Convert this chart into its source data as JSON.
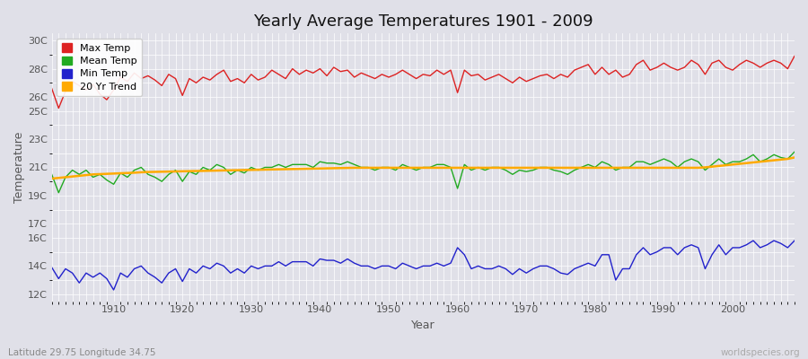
{
  "title": "Yearly Average Temperatures 1901 - 2009",
  "xlabel": "Year",
  "ylabel": "Temperature",
  "subtitle": "Latitude 29.75 Longitude 34.75",
  "watermark": "worldspecies.org",
  "bg_color": "#e0e0e8",
  "plot_bg_color": "#e0e0e8",
  "grid_color": "#ffffff",
  "years": [
    1901,
    1902,
    1903,
    1904,
    1905,
    1906,
    1907,
    1908,
    1909,
    1910,
    1911,
    1912,
    1913,
    1914,
    1915,
    1916,
    1917,
    1918,
    1919,
    1920,
    1921,
    1922,
    1923,
    1924,
    1925,
    1926,
    1927,
    1928,
    1929,
    1930,
    1931,
    1932,
    1933,
    1934,
    1935,
    1936,
    1937,
    1938,
    1939,
    1940,
    1941,
    1942,
    1943,
    1944,
    1945,
    1946,
    1947,
    1948,
    1949,
    1950,
    1951,
    1952,
    1953,
    1954,
    1955,
    1956,
    1957,
    1958,
    1959,
    1960,
    1961,
    1962,
    1963,
    1964,
    1965,
    1966,
    1967,
    1968,
    1969,
    1970,
    1971,
    1972,
    1973,
    1974,
    1975,
    1976,
    1977,
    1978,
    1979,
    1980,
    1981,
    1982,
    1983,
    1984,
    1985,
    1986,
    1987,
    1988,
    1989,
    1990,
    1991,
    1992,
    1993,
    1994,
    1995,
    1996,
    1997,
    1998,
    1999,
    2000,
    2001,
    2002,
    2003,
    2004,
    2005,
    2006,
    2007,
    2008,
    2009
  ],
  "max_temp": [
    26.6,
    25.2,
    26.4,
    27.1,
    26.8,
    26.5,
    26.9,
    26.2,
    25.8,
    26.5,
    27.4,
    27.1,
    27.7,
    27.3,
    27.5,
    27.2,
    26.8,
    27.6,
    27.3,
    26.1,
    27.3,
    27.0,
    27.4,
    27.2,
    27.6,
    27.9,
    27.1,
    27.3,
    27.0,
    27.6,
    27.2,
    27.4,
    27.9,
    27.6,
    27.3,
    28.0,
    27.6,
    27.9,
    27.7,
    28.0,
    27.5,
    28.1,
    27.8,
    27.9,
    27.4,
    27.7,
    27.5,
    27.3,
    27.6,
    27.4,
    27.6,
    27.9,
    27.6,
    27.3,
    27.6,
    27.5,
    27.9,
    27.6,
    27.9,
    26.3,
    27.9,
    27.5,
    27.6,
    27.2,
    27.4,
    27.6,
    27.3,
    27.0,
    27.4,
    27.1,
    27.3,
    27.5,
    27.6,
    27.3,
    27.6,
    27.4,
    27.9,
    28.1,
    28.3,
    27.6,
    28.1,
    27.6,
    27.9,
    27.4,
    27.6,
    28.3,
    28.6,
    27.9,
    28.1,
    28.4,
    28.1,
    27.9,
    28.1,
    28.6,
    28.3,
    27.6,
    28.4,
    28.6,
    28.1,
    27.9,
    28.3,
    28.6,
    28.4,
    28.1,
    28.4,
    28.6,
    28.4,
    28.0,
    28.9
  ],
  "mean_temp": [
    20.5,
    19.2,
    20.3,
    20.8,
    20.5,
    20.8,
    20.3,
    20.5,
    20.1,
    19.8,
    20.6,
    20.3,
    20.8,
    21.0,
    20.5,
    20.3,
    20.0,
    20.5,
    20.8,
    20.0,
    20.7,
    20.5,
    21.0,
    20.8,
    21.2,
    21.0,
    20.5,
    20.8,
    20.6,
    21.0,
    20.8,
    21.0,
    21.0,
    21.2,
    21.0,
    21.2,
    21.2,
    21.2,
    21.0,
    21.4,
    21.3,
    21.3,
    21.2,
    21.4,
    21.2,
    21.0,
    21.0,
    20.8,
    21.0,
    21.0,
    20.8,
    21.2,
    21.0,
    20.8,
    21.0,
    21.0,
    21.2,
    21.2,
    21.0,
    19.5,
    21.2,
    20.8,
    21.0,
    20.8,
    21.0,
    21.0,
    20.8,
    20.5,
    20.8,
    20.7,
    20.8,
    21.0,
    21.0,
    20.8,
    20.7,
    20.5,
    20.8,
    21.0,
    21.2,
    21.0,
    21.4,
    21.2,
    20.8,
    21.0,
    21.0,
    21.4,
    21.4,
    21.2,
    21.4,
    21.6,
    21.4,
    21.0,
    21.4,
    21.6,
    21.4,
    20.8,
    21.2,
    21.6,
    21.2,
    21.4,
    21.4,
    21.6,
    21.9,
    21.4,
    21.6,
    21.9,
    21.7,
    21.6,
    22.1
  ],
  "min_temp": [
    13.9,
    13.1,
    13.8,
    13.5,
    12.8,
    13.5,
    13.2,
    13.5,
    13.1,
    12.3,
    13.5,
    13.2,
    13.8,
    14.0,
    13.5,
    13.2,
    12.8,
    13.5,
    13.8,
    12.9,
    13.8,
    13.5,
    14.0,
    13.8,
    14.2,
    14.0,
    13.5,
    13.8,
    13.5,
    14.0,
    13.8,
    14.0,
    14.0,
    14.3,
    14.0,
    14.3,
    14.3,
    14.3,
    14.0,
    14.5,
    14.4,
    14.4,
    14.2,
    14.5,
    14.2,
    14.0,
    14.0,
    13.8,
    14.0,
    14.0,
    13.8,
    14.2,
    14.0,
    13.8,
    14.0,
    14.0,
    14.2,
    14.0,
    14.2,
    15.3,
    14.8,
    13.8,
    14.0,
    13.8,
    13.8,
    14.0,
    13.8,
    13.4,
    13.8,
    13.5,
    13.8,
    14.0,
    14.0,
    13.8,
    13.5,
    13.4,
    13.8,
    14.0,
    14.2,
    14.0,
    14.8,
    14.8,
    13.0,
    13.8,
    13.8,
    14.8,
    15.3,
    14.8,
    15.0,
    15.3,
    15.3,
    14.8,
    15.3,
    15.5,
    15.3,
    13.8,
    14.8,
    15.5,
    14.8,
    15.3,
    15.3,
    15.5,
    15.8,
    15.3,
    15.5,
    15.8,
    15.6,
    15.3,
    15.8
  ],
  "trend": [
    20.2,
    20.25,
    20.3,
    20.35,
    20.4,
    20.45,
    20.5,
    20.52,
    20.54,
    20.56,
    20.58,
    20.6,
    20.62,
    20.65,
    20.67,
    20.68,
    20.69,
    20.7,
    20.71,
    20.72,
    20.73,
    20.74,
    20.75,
    20.76,
    20.77,
    20.78,
    20.79,
    20.8,
    20.81,
    20.82,
    20.83,
    20.84,
    20.85,
    20.86,
    20.87,
    20.88,
    20.89,
    20.9,
    20.91,
    20.92,
    20.93,
    20.94,
    20.95,
    20.96,
    20.97,
    20.97,
    20.97,
    20.97,
    20.97,
    20.97,
    20.97,
    20.97,
    20.97,
    20.97,
    20.97,
    20.97,
    20.97,
    20.97,
    20.97,
    20.97,
    20.97,
    20.97,
    20.97,
    20.97,
    20.97,
    20.97,
    20.97,
    20.97,
    20.97,
    20.97,
    20.97,
    20.97,
    20.97,
    20.97,
    20.97,
    20.97,
    20.97,
    20.97,
    20.97,
    20.97,
    20.97,
    20.97,
    20.97,
    20.97,
    20.97,
    20.97,
    20.97,
    20.97,
    20.97,
    20.97,
    20.97,
    20.97,
    20.97,
    20.97,
    20.97,
    21.0,
    21.05,
    21.1,
    21.15,
    21.2,
    21.25,
    21.3,
    21.35,
    21.4,
    21.45,
    21.5,
    21.55,
    21.6,
    21.7
  ],
  "yticks_vals": [
    12,
    14,
    16,
    17,
    19,
    21,
    23,
    25,
    26,
    28,
    30
  ],
  "ylim": [
    11.5,
    30.5
  ],
  "xlim": [
    1901,
    2009
  ],
  "xticks": [
    1910,
    1920,
    1930,
    1940,
    1950,
    1960,
    1970,
    1980,
    1990,
    2000
  ],
  "max_color": "#dd2222",
  "mean_color": "#22aa22",
  "min_color": "#2222cc",
  "trend_color": "#ffaa00",
  "legend_labels": [
    "Max Temp",
    "Mean Temp",
    "Min Temp",
    "20 Yr Trend"
  ]
}
